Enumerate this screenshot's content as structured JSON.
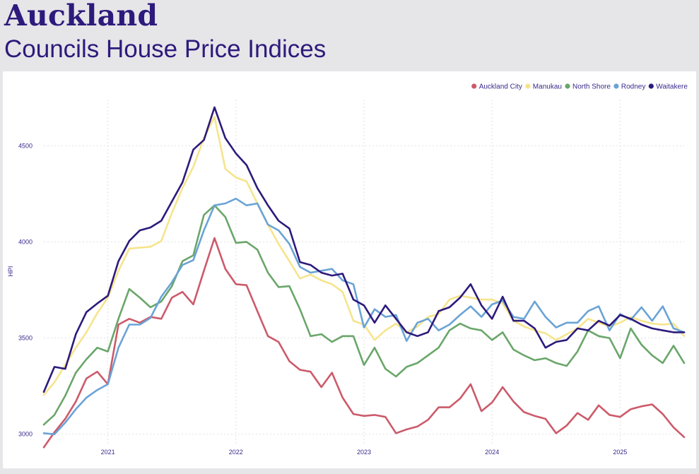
{
  "header": {
    "title": "Auckland",
    "subtitle": "Councils House Price Indices"
  },
  "chart_data": {
    "type": "line",
    "title": "Councils House Price Indices",
    "xlabel": "",
    "ylabel": "HPI",
    "ylim": [
      2940,
      4740
    ],
    "yticks": [
      3000,
      3500,
      4000,
      4500
    ],
    "xticks": [
      "2021",
      "2022",
      "2023",
      "2024",
      "2025"
    ],
    "xlim": [
      2020.5,
      2025.5
    ],
    "grid": true,
    "legend": "top-right",
    "x": [
      2020.5,
      2020.583,
      2020.667,
      2020.75,
      2020.833,
      2020.917,
      2021.0,
      2021.083,
      2021.167,
      2021.25,
      2021.333,
      2021.417,
      2021.5,
      2021.583,
      2021.667,
      2021.75,
      2021.833,
      2021.917,
      2022.0,
      2022.083,
      2022.167,
      2022.25,
      2022.333,
      2022.417,
      2022.5,
      2022.583,
      2022.667,
      2022.75,
      2022.833,
      2022.917,
      2023.0,
      2023.083,
      2023.167,
      2023.25,
      2023.333,
      2023.417,
      2023.5,
      2023.583,
      2023.667,
      2023.75,
      2023.833,
      2023.917,
      2024.0,
      2024.083,
      2024.167,
      2024.25,
      2024.333,
      2024.417,
      2024.5,
      2024.583,
      2024.667,
      2024.75,
      2024.833,
      2024.917,
      2025.0,
      2025.083,
      2025.167,
      2025.25,
      2025.333,
      2025.417,
      2025.5
    ],
    "series": [
      {
        "name": "Auckland City",
        "color": "#cc5a6a",
        "values": [
          2932,
          3010,
          3080,
          3170,
          3290,
          3325,
          3260,
          3570,
          3600,
          3580,
          3610,
          3600,
          3710,
          3740,
          3675,
          3850,
          4020,
          3860,
          3780,
          3775,
          3640,
          3510,
          3480,
          3380,
          3335,
          3325,
          3245,
          3320,
          3190,
          3105,
          3095,
          3100,
          3090,
          3005,
          3025,
          3040,
          3075,
          3140,
          3140,
          3185,
          3260,
          3120,
          3165,
          3245,
          3170,
          3115,
          3095,
          3080,
          3005,
          3045,
          3110,
          3075,
          3150,
          3100,
          3090,
          3130,
          3145,
          3155,
          3105,
          3035,
          2985
        ]
      },
      {
        "name": "Manukau",
        "color": "#f6e48c",
        "values": [
          3205,
          3270,
          3360,
          3450,
          3530,
          3630,
          3710,
          3850,
          3965,
          3970,
          3975,
          4005,
          4150,
          4280,
          4390,
          4540,
          4650,
          4380,
          4335,
          4315,
          4200,
          4090,
          3990,
          3900,
          3810,
          3830,
          3800,
          3780,
          3740,
          3590,
          3570,
          3490,
          3540,
          3575,
          3530,
          3560,
          3610,
          3625,
          3700,
          3720,
          3710,
          3700,
          3700,
          3680,
          3590,
          3560,
          3540,
          3525,
          3490,
          3520,
          3550,
          3600,
          3580,
          3560,
          3580,
          3610,
          3590,
          3575,
          3570,
          3575,
          3510
        ]
      },
      {
        "name": "North Shore",
        "color": "#6aa66a",
        "values": [
          3050,
          3100,
          3200,
          3320,
          3390,
          3450,
          3430,
          3600,
          3755,
          3710,
          3660,
          3690,
          3770,
          3900,
          3930,
          4140,
          4190,
          4130,
          3995,
          4000,
          3960,
          3840,
          3765,
          3770,
          3650,
          3510,
          3520,
          3480,
          3510,
          3510,
          3360,
          3450,
          3340,
          3300,
          3350,
          3370,
          3410,
          3450,
          3540,
          3575,
          3550,
          3540,
          3490,
          3530,
          3440,
          3410,
          3385,
          3395,
          3370,
          3355,
          3430,
          3540,
          3510,
          3500,
          3395,
          3550,
          3465,
          3410,
          3370,
          3460,
          3370
        ]
      },
      {
        "name": "Rodney",
        "color": "#6aa3d6",
        "values": [
          3005,
          3000,
          3060,
          3130,
          3190,
          3230,
          3260,
          3450,
          3570,
          3570,
          3605,
          3715,
          3790,
          3880,
          3905,
          4060,
          4190,
          4200,
          4225,
          4190,
          4200,
          4090,
          4060,
          3990,
          3870,
          3840,
          3850,
          3860,
          3800,
          3780,
          3555,
          3650,
          3610,
          3620,
          3485,
          3580,
          3600,
          3540,
          3570,
          3620,
          3665,
          3610,
          3675,
          3695,
          3610,
          3600,
          3690,
          3610,
          3555,
          3580,
          3580,
          3640,
          3665,
          3540,
          3625,
          3595,
          3660,
          3590,
          3665,
          3550,
          3530
        ]
      },
      {
        "name": "Waitakere",
        "color": "#2d1a7c",
        "values": [
          3220,
          3350,
          3340,
          3520,
          3635,
          3680,
          3720,
          3900,
          4005,
          4060,
          4075,
          4110,
          4210,
          4310,
          4480,
          4530,
          4700,
          4540,
          4460,
          4400,
          4280,
          4190,
          4110,
          4070,
          3895,
          3880,
          3840,
          3825,
          3835,
          3700,
          3670,
          3580,
          3670,
          3600,
          3530,
          3510,
          3530,
          3640,
          3660,
          3710,
          3780,
          3670,
          3600,
          3715,
          3590,
          3590,
          3550,
          3450,
          3480,
          3490,
          3550,
          3540,
          3590,
          3565,
          3620,
          3600,
          3570,
          3550,
          3540,
          3530,
          3530
        ]
      }
    ]
  }
}
